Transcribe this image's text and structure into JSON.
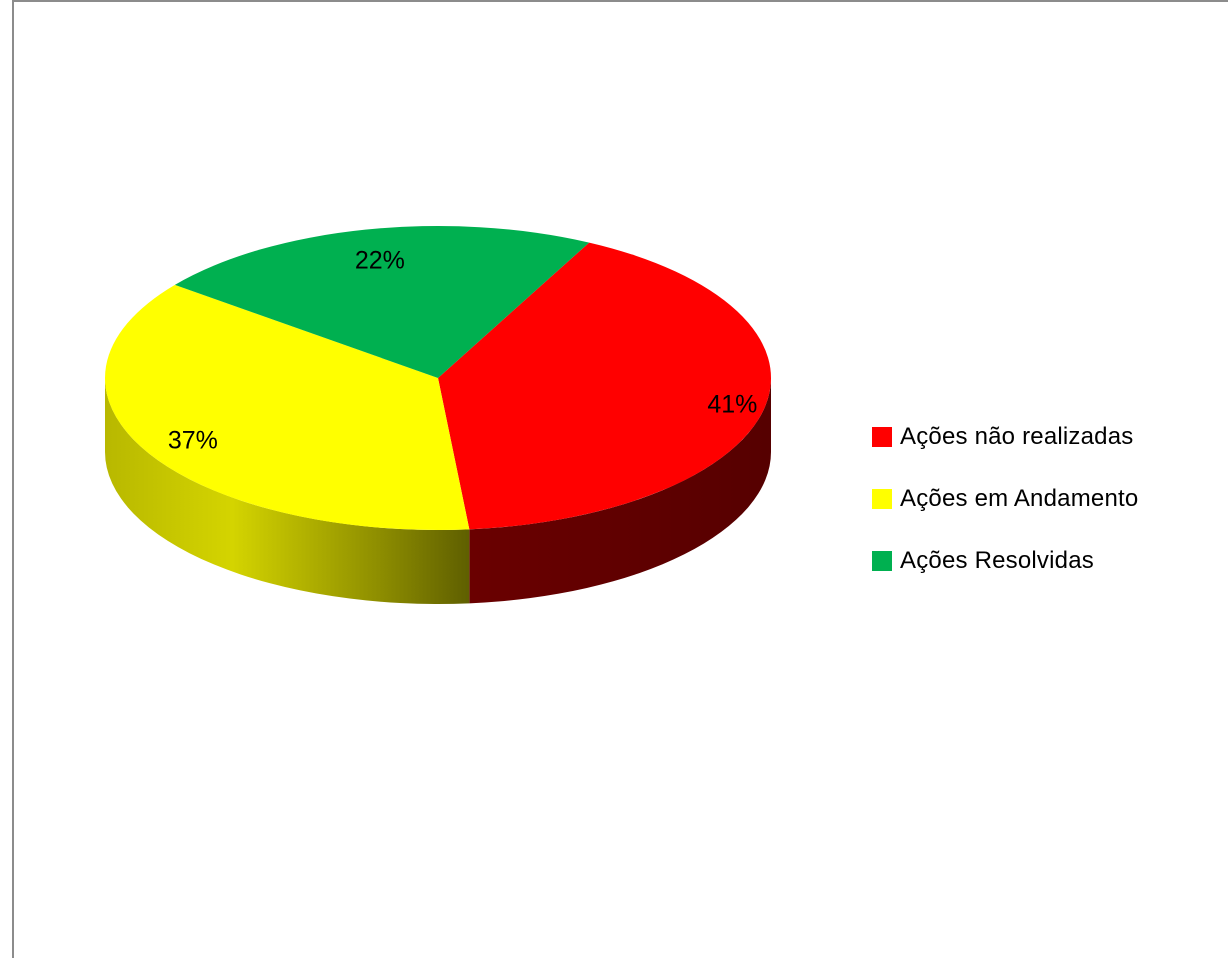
{
  "chart_data": {
    "type": "pie",
    "style": "3d",
    "title": "",
    "slices": [
      {
        "label": "Ações não realizadas",
        "value": 41,
        "display": "41%",
        "color": "#ff0000",
        "side_color": "#6e0000"
      },
      {
        "label": "Ações em Andamento",
        "value": 37,
        "display": "37%",
        "color": "#ffff00",
        "side_color": "#8a8a00"
      },
      {
        "label": "Ações Resolvidas",
        "value": 22,
        "display": "22%",
        "color": "#00b050",
        "side_color": "#005a28"
      }
    ],
    "legend": {
      "position": "right",
      "entries": [
        "Ações não realizadas",
        "Ações em Andamento",
        "Ações Resolvidas"
      ]
    }
  }
}
